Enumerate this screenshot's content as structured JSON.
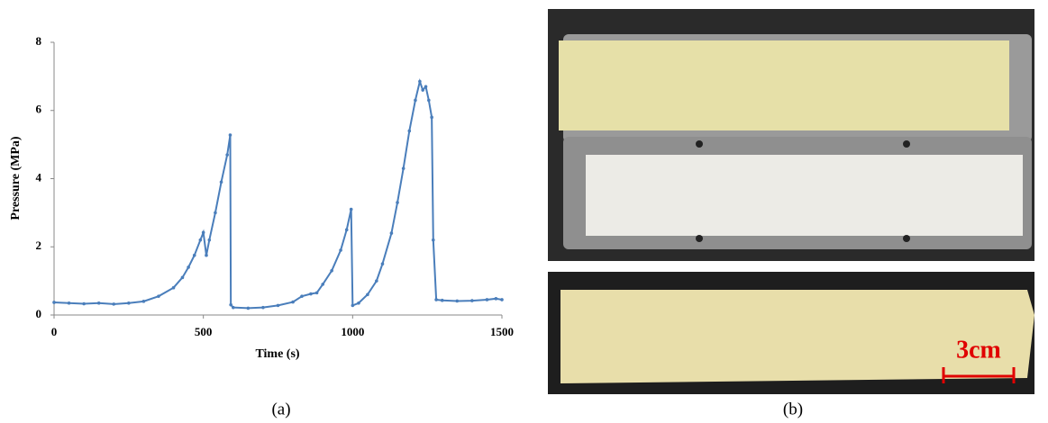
{
  "chart_data": {
    "type": "line",
    "x_label": "Time (s)",
    "y_label": "Pressure (MPa)",
    "x": [
      0,
      50,
      100,
      150,
      200,
      250,
      300,
      350,
      400,
      430,
      450,
      470,
      490,
      500,
      510,
      520,
      540,
      560,
      580,
      590,
      592,
      600,
      650,
      700,
      750,
      800,
      830,
      860,
      880,
      900,
      930,
      960,
      980,
      995,
      1000,
      1020,
      1050,
      1080,
      1100,
      1130,
      1150,
      1170,
      1190,
      1210,
      1225,
      1235,
      1245,
      1255,
      1265,
      1270,
      1280,
      1300,
      1350,
      1400,
      1450,
      1480,
      1500
    ],
    "values": [
      0.37,
      0.35,
      0.33,
      0.35,
      0.32,
      0.35,
      0.4,
      0.55,
      0.8,
      1.1,
      1.4,
      1.75,
      2.2,
      2.42,
      1.75,
      2.2,
      3.0,
      3.9,
      4.7,
      5.28,
      0.3,
      0.22,
      0.2,
      0.22,
      0.28,
      0.38,
      0.55,
      0.62,
      0.65,
      0.9,
      1.3,
      1.9,
      2.5,
      3.1,
      0.28,
      0.35,
      0.6,
      1.0,
      1.5,
      2.4,
      3.3,
      4.3,
      5.4,
      6.3,
      6.85,
      6.6,
      6.7,
      6.3,
      5.8,
      2.2,
      0.45,
      0.43,
      0.41,
      0.42,
      0.45,
      0.48,
      0.45
    ],
    "color": "#4a7ebb",
    "xlim": [
      0,
      1500
    ],
    "xticks": [
      0,
      500,
      1000,
      1500
    ],
    "ylim": [
      0,
      8
    ],
    "yticks": [
      0,
      2,
      4,
      6,
      8
    ]
  },
  "panel_labels": [
    "(a)",
    "(b)"
  ],
  "scale_bar_label": "3cm"
}
